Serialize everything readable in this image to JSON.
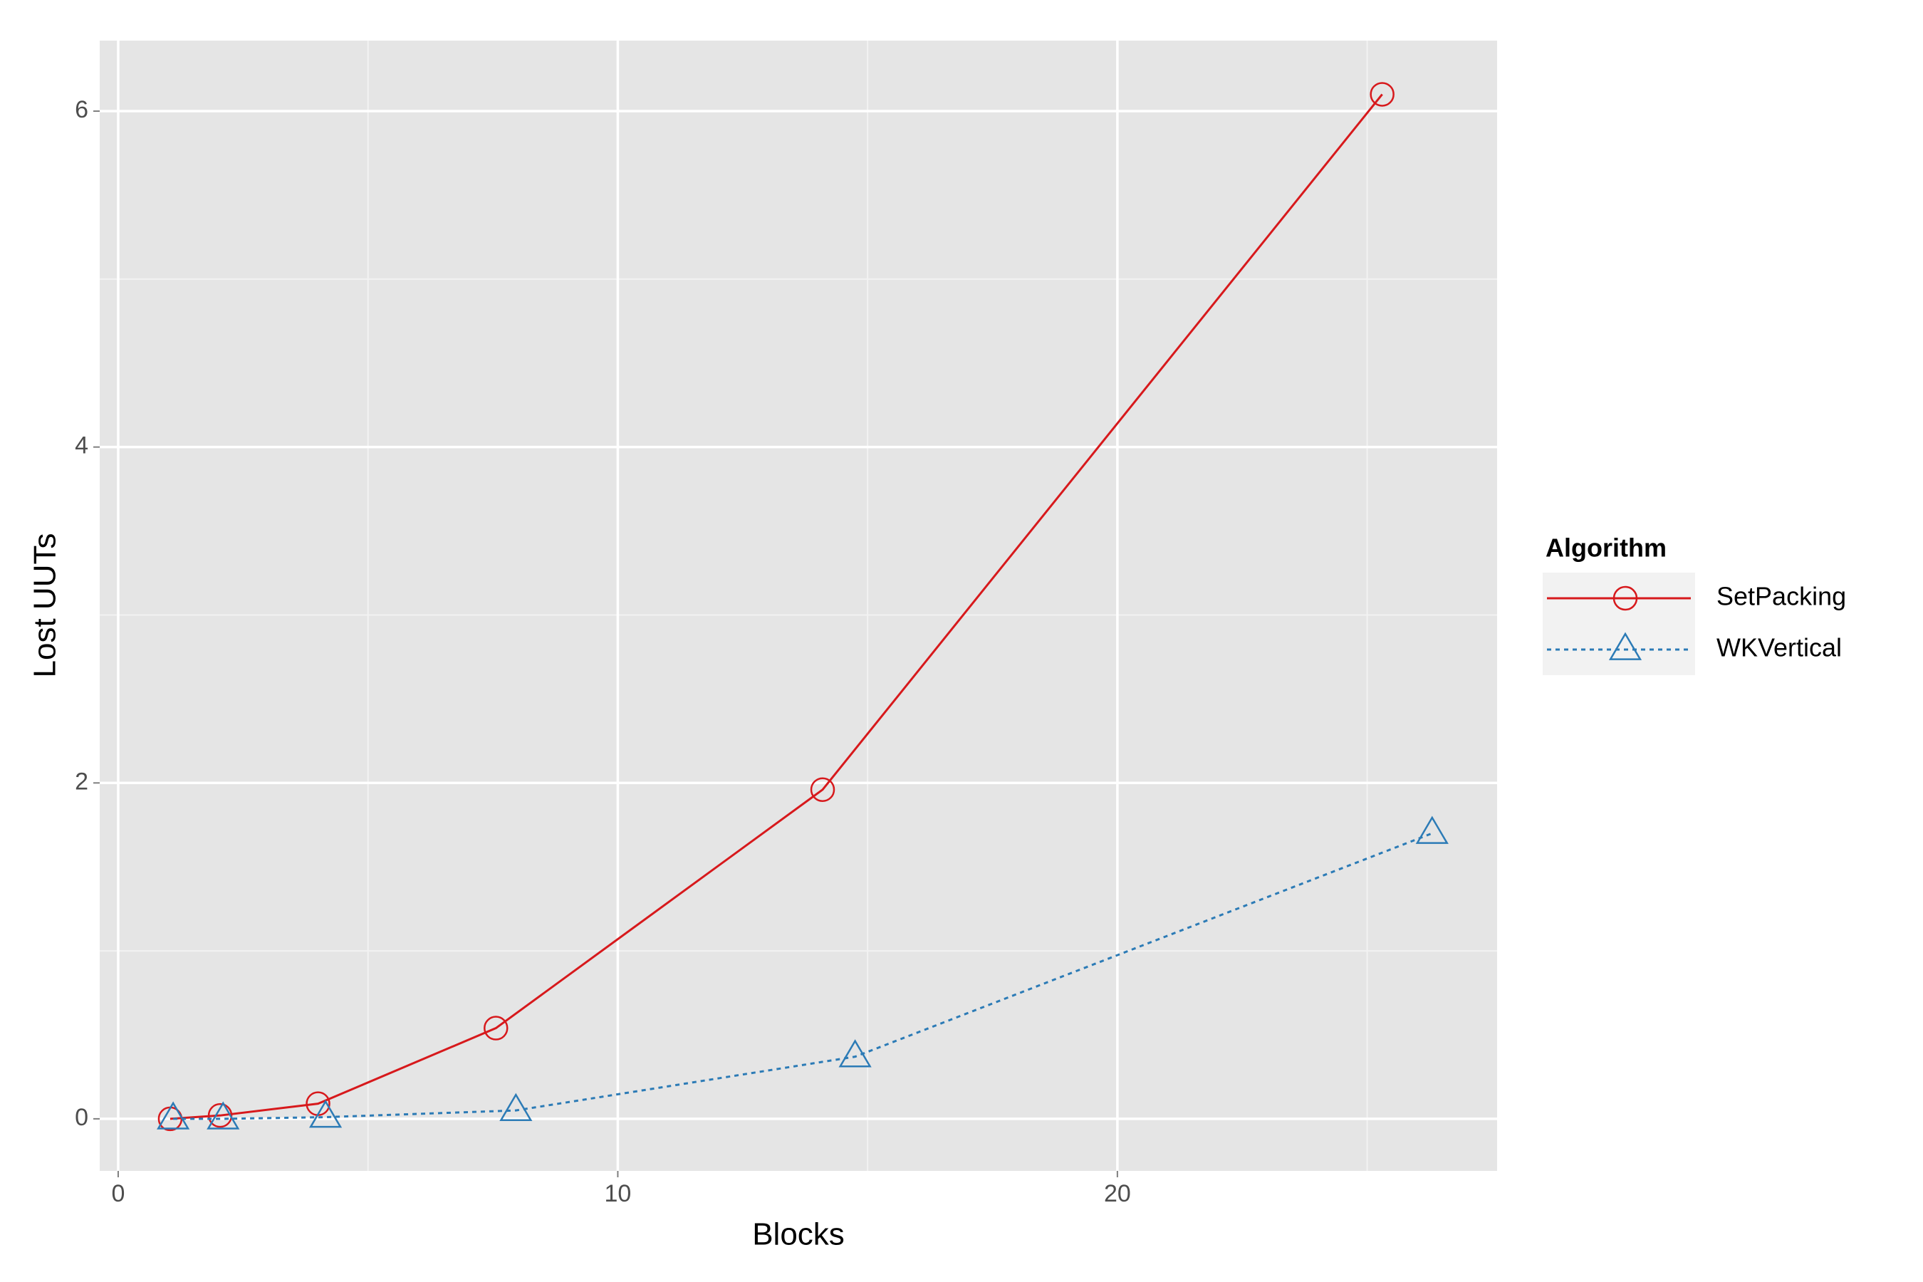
{
  "chart_data": {
    "type": "line",
    "x_label": "Blocks",
    "y_label": "Lost UUTs",
    "legend_title": "Algorithm",
    "legend_position": "right",
    "xlim": [
      -0.37,
      27.6
    ],
    "ylim": [
      -0.31,
      6.42
    ],
    "xticks": [
      0,
      10,
      20
    ],
    "yticks": [
      0,
      2,
      4,
      6
    ],
    "x_minor_grid": [
      5,
      15,
      25
    ],
    "y_minor_grid": [
      1,
      3,
      5
    ],
    "grid": true,
    "series": [
      {
        "name": "SetPacking",
        "color": "#d7191c",
        "marker": "circle",
        "line_style": "solid",
        "x": [
          1.04,
          2.04,
          4,
          7.56,
          14.1,
          25.3
        ],
        "values": [
          0,
          0.02,
          0.09,
          0.54,
          1.96,
          6.1
        ]
      },
      {
        "name": "WKVertical",
        "color": "#2c7bb6",
        "marker": "triangle",
        "line_style": "dashed",
        "x": [
          1.1,
          2.1,
          4.15,
          7.96,
          14.75,
          26.3
        ],
        "values": [
          0,
          0,
          0.01,
          0.05,
          0.37,
          1.7
        ]
      }
    ]
  }
}
